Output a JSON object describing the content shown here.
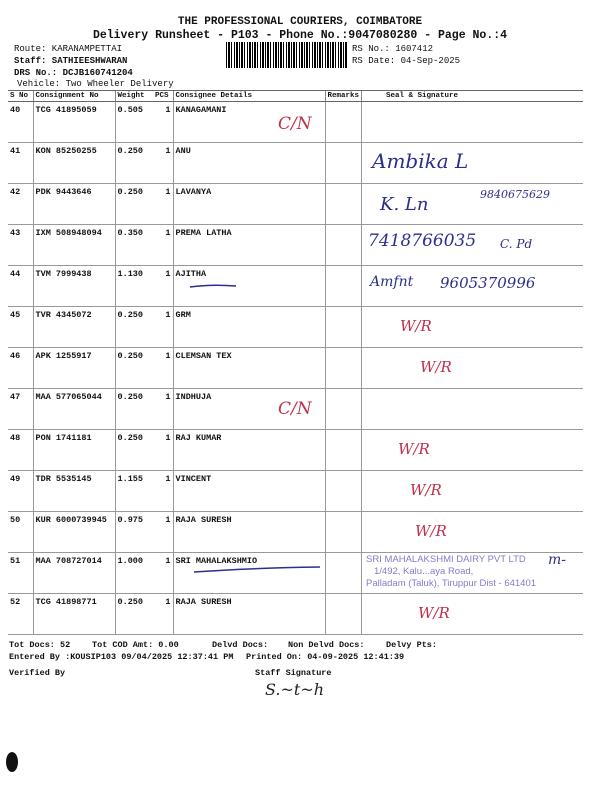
{
  "header": {
    "company": "THE PROFESSIONAL COURIERS, COIMBATORE",
    "subtitle": "Delivery Runsheet - P103 - Phone No.:9047080280 - Page No.:4",
    "route": "Route: KARANAMPETTAI",
    "staff": "Staff: SATHIEESHWARAN",
    "drs": "DRS No.: DCJB160741204",
    "vehicle": "Vehicle: Two Wheeler Delivery",
    "rs_no": "RS No.: 1607412",
    "rs_date": "RS Date: 04-Sep-2025"
  },
  "table": {
    "columns": [
      "S No",
      "Consignment No",
      "Weight",
      "PCS",
      "Consignee Details",
      "Remarks",
      "Seal & Signature"
    ],
    "rows": [
      {
        "sno": "40",
        "cn": "TCG 41895059",
        "wt": "0.505",
        "pcs": "1",
        "name": "KANAGAMANI"
      },
      {
        "sno": "41",
        "cn": "KON 85250255",
        "wt": "0.250",
        "pcs": "1",
        "name": "ANU"
      },
      {
        "sno": "42",
        "cn": "PDK 9443646",
        "wt": "0.250",
        "pcs": "1",
        "name": "LAVANYA"
      },
      {
        "sno": "43",
        "cn": "IXM 508948094",
        "wt": "0.350",
        "pcs": "1",
        "name": "PREMA LATHA"
      },
      {
        "sno": "44",
        "cn": "TVM 7999438",
        "wt": "1.130",
        "pcs": "1",
        "name": "AJITHA"
      },
      {
        "sno": "45",
        "cn": "TVR 4345072",
        "wt": "0.250",
        "pcs": "1",
        "name": "GRM"
      },
      {
        "sno": "46",
        "cn": "APK 1255917",
        "wt": "0.250",
        "pcs": "1",
        "name": "CLEMSAN TEX"
      },
      {
        "sno": "47",
        "cn": "MAA 577065044",
        "wt": "0.250",
        "pcs": "1",
        "name": "INDHUJA"
      },
      {
        "sno": "48",
        "cn": "PON 1741181",
        "wt": "0.250",
        "pcs": "1",
        "name": "RAJ KUMAR"
      },
      {
        "sno": "49",
        "cn": "TDR 5535145",
        "wt": "1.155",
        "pcs": "1",
        "name": "VINCENT"
      },
      {
        "sno": "50",
        "cn": "KUR 6000739945",
        "wt": "0.975",
        "pcs": "1",
        "name": "RAJA SURESH"
      },
      {
        "sno": "51",
        "cn": "MAA 708727014",
        "wt": "1.000",
        "pcs": "1",
        "name": "SRI MAHALAKSHMIO"
      },
      {
        "sno": "52",
        "cn": "TCG 41898771",
        "wt": "0.250",
        "pcs": "1",
        "name": "RAJA SURESH"
      }
    ]
  },
  "handwriting": {
    "cn1": "C/N",
    "cn2": "C/N",
    "sig41": "Ambika L",
    "sig42": "K. Ln",
    "ph42": "9840675629",
    "ph43": "7418766035",
    "sig43": "C. Pd",
    "sig44": "Amfnt",
    "ph44": "9605370996",
    "wr45": "W/R",
    "wr46": "W/R",
    "wr48": "W/R",
    "wr49": "W/R",
    "wr50": "W/R",
    "sig51": "m-",
    "wr52": "W/R",
    "staff_sig": "S.~t~h"
  },
  "stamp": {
    "line1": "SRI MAHALAKSHMI DAIRY PVT LTD",
    "line2": "1/492, Kalu...aya Road,",
    "line3": "Palladam (Taluk), Tiruppur Dist - 641401"
  },
  "footer": {
    "tot_docs": "Tot Docs:  52",
    "tot_cod": "Tot COD Amt:    0.00",
    "delvd": "Delvd Docs:",
    "non_delvd": "Non Delvd Docs:",
    "delvy_pts": "Delvy Pts:",
    "entered_by": "Entered By :KOUSIP103 09/04/2025 12:37:41 PM",
    "printed_on": "Printed On: 04-09-2025 12:41:39",
    "verified_by": "Verified By",
    "staff_signature": "Staff Signature"
  },
  "colors": {
    "red_ink": "#c0304a",
    "blue_ink": "#2a2f8c",
    "stamp": "#8a78c8"
  }
}
